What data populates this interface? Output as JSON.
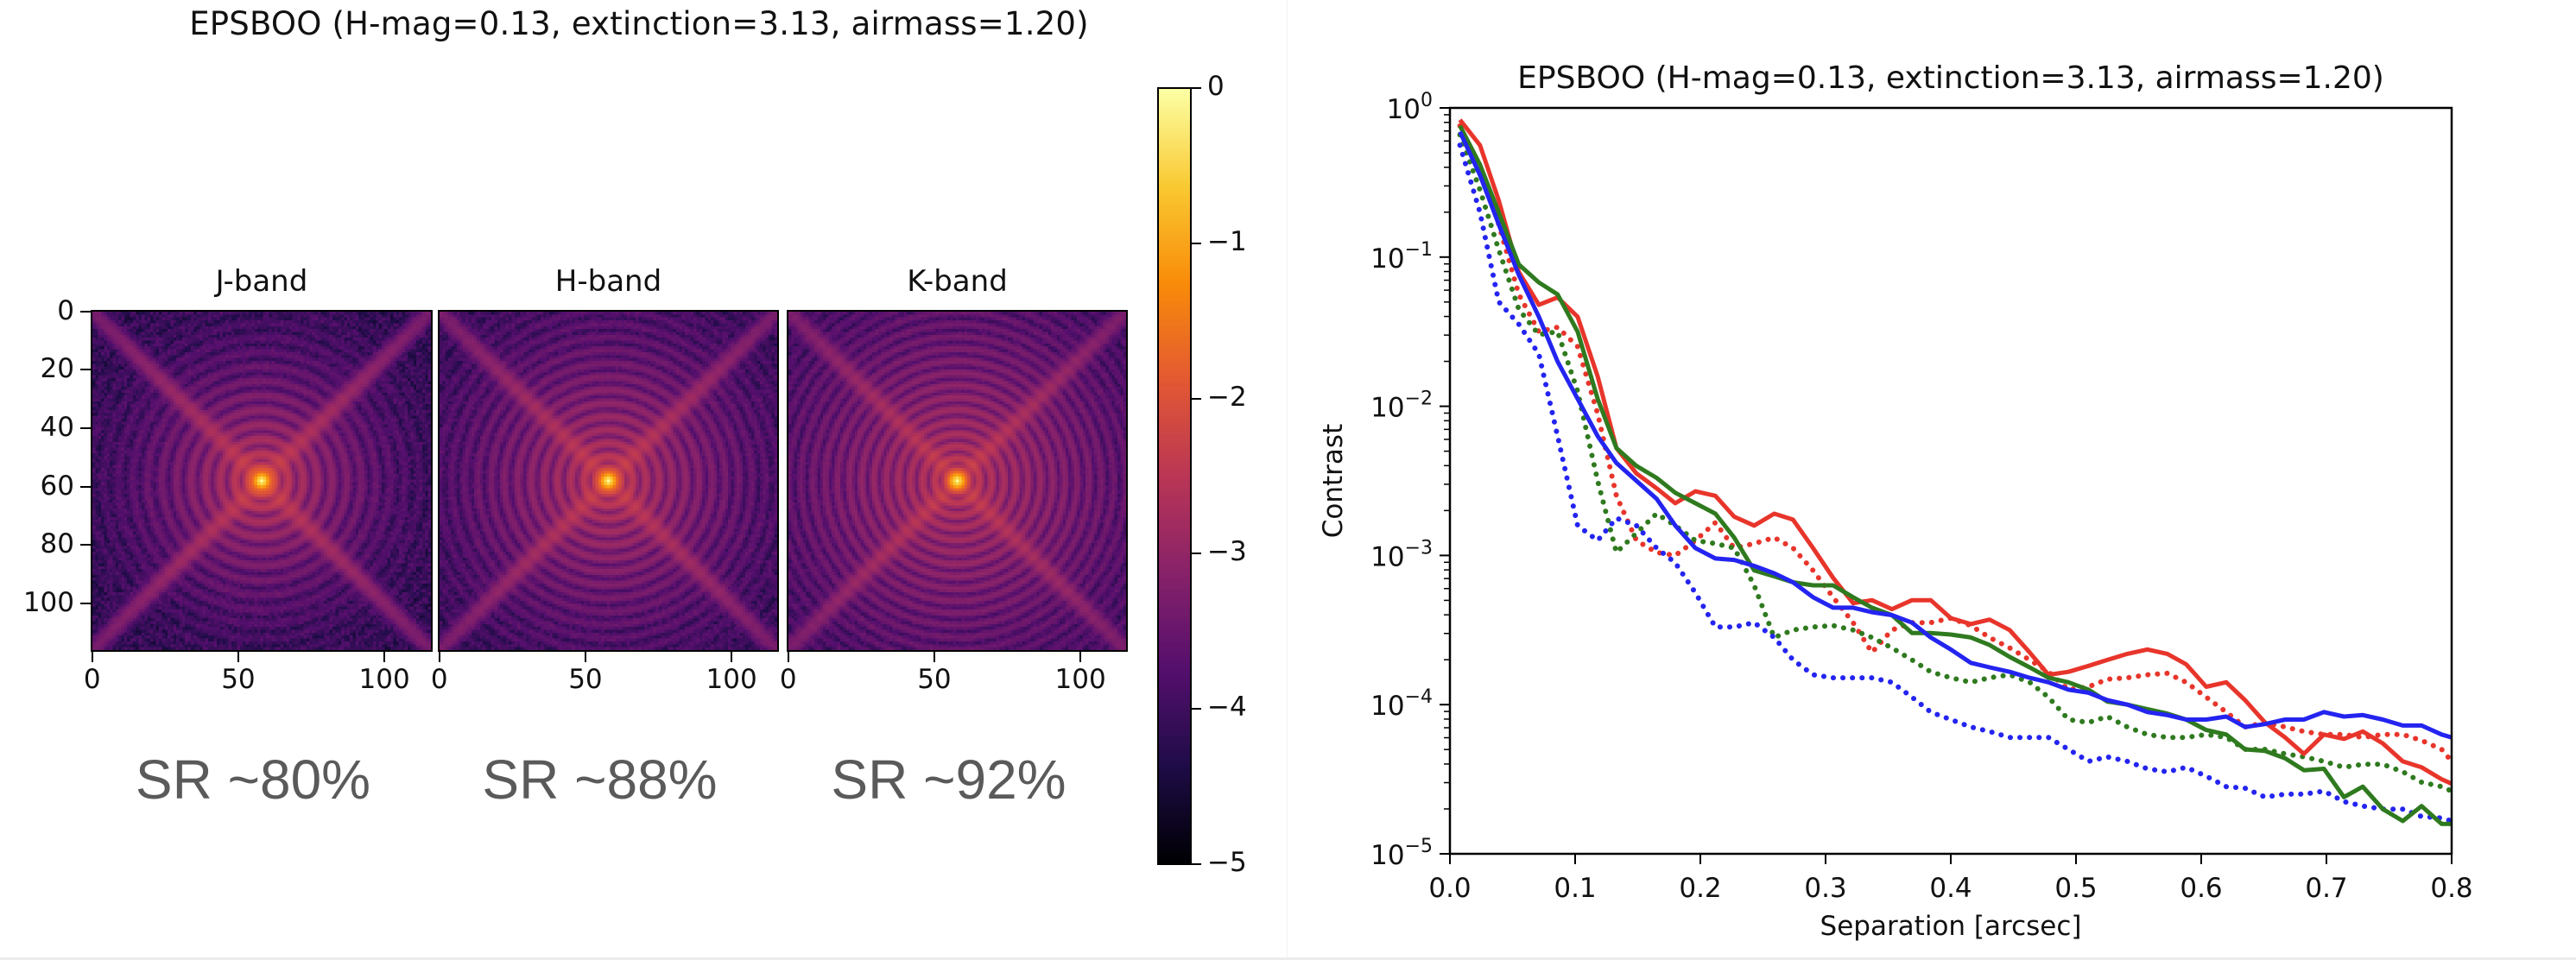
{
  "left_figure": {
    "title": "EPSBOO (H-mag=0.13, extinction=3.13, airmass=1.20)",
    "panels": [
      {
        "title": "J-band",
        "strehl_label": "SR ~80%",
        "strehl_percent": 80
      },
      {
        "title": "H-band",
        "strehl_label": "SR ~88%",
        "strehl_percent": 88
      },
      {
        "title": "K-band",
        "strehl_label": "SR ~92%",
        "strehl_percent": 92
      }
    ],
    "image_axis": {
      "size_pixels": 117,
      "x_ticks": [
        "0",
        "50",
        "100"
      ],
      "x_tick_values": [
        0,
        50,
        100
      ],
      "y_ticks": [
        "0",
        "20",
        "40",
        "60",
        "80",
        "100"
      ],
      "y_tick_values": [
        0,
        20,
        40,
        60,
        80,
        100
      ]
    },
    "colorbar": {
      "colormap": "inferno",
      "range": [
        -5,
        0
      ],
      "ticks": [
        "0",
        "−1",
        "−2",
        "−3",
        "−4",
        "−5"
      ],
      "tick_values": [
        0,
        -1,
        -2,
        -3,
        -4,
        -5
      ]
    }
  },
  "chart_data": {
    "type": "line",
    "title": "EPSBOO (H-mag=0.13, extinction=3.13, airmass=1.20)",
    "xlabel": "Separation [arcsec]",
    "ylabel": "Contrast",
    "xlim": [
      0.0,
      0.8
    ],
    "ylim": [
      1e-05,
      1
    ],
    "yscale": "log",
    "grid": false,
    "legend": "none",
    "x_ticks": [
      "0.0",
      "0.1",
      "0.2",
      "0.3",
      "0.4",
      "0.5",
      "0.6",
      "0.7",
      "0.8"
    ],
    "x_tick_values": [
      0.0,
      0.1,
      0.2,
      0.3,
      0.4,
      0.5,
      0.6,
      0.7,
      0.8
    ],
    "y_ticks": [
      {
        "base": "10",
        "exp": "0",
        "value": 1
      },
      {
        "base": "10",
        "exp": "−1",
        "value": 0.1
      },
      {
        "base": "10",
        "exp": "−2",
        "value": 0.01
      },
      {
        "base": "10",
        "exp": "−3",
        "value": 0.001
      },
      {
        "base": "10",
        "exp": "−4",
        "value": 0.0001
      },
      {
        "base": "10",
        "exp": "−5",
        "value": 1e-05
      }
    ],
    "x": [
      0.008,
      0.024,
      0.039,
      0.055,
      0.071,
      0.086,
      0.102,
      0.118,
      0.133,
      0.149,
      0.165,
      0.18,
      0.196,
      0.212,
      0.227,
      0.243,
      0.259,
      0.274,
      0.29,
      0.306,
      0.322,
      0.337,
      0.353,
      0.369,
      0.384,
      0.4,
      0.416,
      0.431,
      0.447,
      0.463,
      0.478,
      0.494,
      0.51,
      0.525,
      0.541,
      0.557,
      0.573,
      0.588,
      0.604,
      0.62,
      0.635,
      0.651,
      0.667,
      0.682,
      0.698,
      0.714,
      0.729,
      0.745,
      0.761,
      0.776,
      0.792,
      0.8
    ],
    "series": [
      {
        "name": "red-solid",
        "color": "#e8352b",
        "style": "solid",
        "log10_values": [
          -0.08,
          -0.25,
          -0.62,
          -1.1,
          -1.32,
          -1.27,
          -1.4,
          -1.8,
          -2.28,
          -2.45,
          -2.55,
          -2.65,
          -2.57,
          -2.6,
          -2.74,
          -2.8,
          -2.72,
          -2.76,
          -2.95,
          -3.15,
          -3.32,
          -3.3,
          -3.36,
          -3.3,
          -3.3,
          -3.42,
          -3.46,
          -3.43,
          -3.5,
          -3.65,
          -3.8,
          -3.78,
          -3.74,
          -3.7,
          -3.66,
          -3.63,
          -3.66,
          -3.73,
          -3.88,
          -3.85,
          -3.97,
          -4.12,
          -4.22,
          -4.33,
          -4.2,
          -4.23,
          -4.18,
          -4.26,
          -4.38,
          -4.42,
          -4.5,
          -4.53
        ]
      },
      {
        "name": "green-solid",
        "color": "#2f7a1f",
        "style": "solid",
        "log10_values": [
          -0.12,
          -0.38,
          -0.7,
          -1.05,
          -1.17,
          -1.25,
          -1.5,
          -1.95,
          -2.28,
          -2.4,
          -2.48,
          -2.58,
          -2.65,
          -2.72,
          -2.88,
          -3.1,
          -3.14,
          -3.18,
          -3.2,
          -3.2,
          -3.28,
          -3.35,
          -3.4,
          -3.52,
          -3.52,
          -3.53,
          -3.55,
          -3.6,
          -3.68,
          -3.75,
          -3.82,
          -3.85,
          -3.9,
          -3.98,
          -4.0,
          -4.03,
          -4.06,
          -4.1,
          -4.17,
          -4.2,
          -4.3,
          -4.31,
          -4.36,
          -4.44,
          -4.43,
          -4.62,
          -4.55,
          -4.7,
          -4.78,
          -4.68,
          -4.8,
          -4.8
        ]
      },
      {
        "name": "blue-solid",
        "color": "#2424f0",
        "style": "solid",
        "log10_values": [
          -0.16,
          -0.45,
          -0.78,
          -1.12,
          -1.4,
          -1.7,
          -1.95,
          -2.2,
          -2.38,
          -2.5,
          -2.62,
          -2.8,
          -2.95,
          -3.02,
          -3.03,
          -3.07,
          -3.12,
          -3.18,
          -3.28,
          -3.35,
          -3.35,
          -3.38,
          -3.4,
          -3.45,
          -3.55,
          -3.63,
          -3.72,
          -3.75,
          -3.78,
          -3.82,
          -3.85,
          -3.9,
          -3.92,
          -3.97,
          -4.0,
          -4.05,
          -4.07,
          -4.1,
          -4.1,
          -4.08,
          -4.15,
          -4.13,
          -4.1,
          -4.1,
          -4.05,
          -4.08,
          -4.07,
          -4.1,
          -4.14,
          -4.14,
          -4.2,
          -4.22
        ]
      },
      {
        "name": "red-dotted",
        "color": "#e8352b",
        "style": "dotted",
        "log10_values": [
          -0.12,
          -0.4,
          -0.78,
          -1.25,
          -1.5,
          -1.47,
          -1.6,
          -2.05,
          -2.6,
          -2.9,
          -2.98,
          -3.0,
          -2.9,
          -2.78,
          -2.95,
          -2.92,
          -2.88,
          -2.95,
          -3.1,
          -3.28,
          -3.45,
          -3.65,
          -3.5,
          -3.45,
          -3.45,
          -3.42,
          -3.47,
          -3.55,
          -3.62,
          -3.7,
          -3.78,
          -3.9,
          -3.88,
          -3.83,
          -3.82,
          -3.8,
          -3.79,
          -3.85,
          -3.95,
          -4.05,
          -4.15,
          -4.12,
          -4.15,
          -4.18,
          -4.2,
          -4.2,
          -4.22,
          -4.2,
          -4.2,
          -4.24,
          -4.3,
          -4.38
        ]
      },
      {
        "name": "green-dotted",
        "color": "#2f7a1f",
        "style": "dotted",
        "log10_values": [
          -0.18,
          -0.55,
          -0.95,
          -1.35,
          -1.52,
          -1.5,
          -1.9,
          -2.5,
          -2.98,
          -2.85,
          -2.72,
          -2.8,
          -2.9,
          -2.92,
          -2.95,
          -3.2,
          -3.55,
          -3.5,
          -3.48,
          -3.47,
          -3.5,
          -3.55,
          -3.62,
          -3.7,
          -3.78,
          -3.82,
          -3.85,
          -3.82,
          -3.8,
          -3.85,
          -3.95,
          -4.1,
          -4.12,
          -4.08,
          -4.15,
          -4.2,
          -4.22,
          -4.22,
          -4.2,
          -4.22,
          -4.3,
          -4.3,
          -4.33,
          -4.35,
          -4.38,
          -4.42,
          -4.4,
          -4.4,
          -4.45,
          -4.52,
          -4.55,
          -4.58
        ]
      },
      {
        "name": "blue-dotted",
        "color": "#2424f0",
        "style": "dotted",
        "log10_values": [
          -0.25,
          -0.7,
          -1.3,
          -1.45,
          -1.65,
          -2.2,
          -2.8,
          -2.9,
          -2.75,
          -2.8,
          -2.95,
          -3.05,
          -3.25,
          -3.48,
          -3.48,
          -3.45,
          -3.55,
          -3.7,
          -3.8,
          -3.82,
          -3.82,
          -3.82,
          -3.85,
          -3.95,
          -4.05,
          -4.1,
          -4.15,
          -4.18,
          -4.22,
          -4.22,
          -4.22,
          -4.3,
          -4.38,
          -4.35,
          -4.38,
          -4.43,
          -4.45,
          -4.42,
          -4.48,
          -4.55,
          -4.56,
          -4.62,
          -4.6,
          -4.6,
          -4.58,
          -4.65,
          -4.68,
          -4.7,
          -4.7,
          -4.75,
          -4.76,
          -4.78
        ]
      }
    ]
  }
}
